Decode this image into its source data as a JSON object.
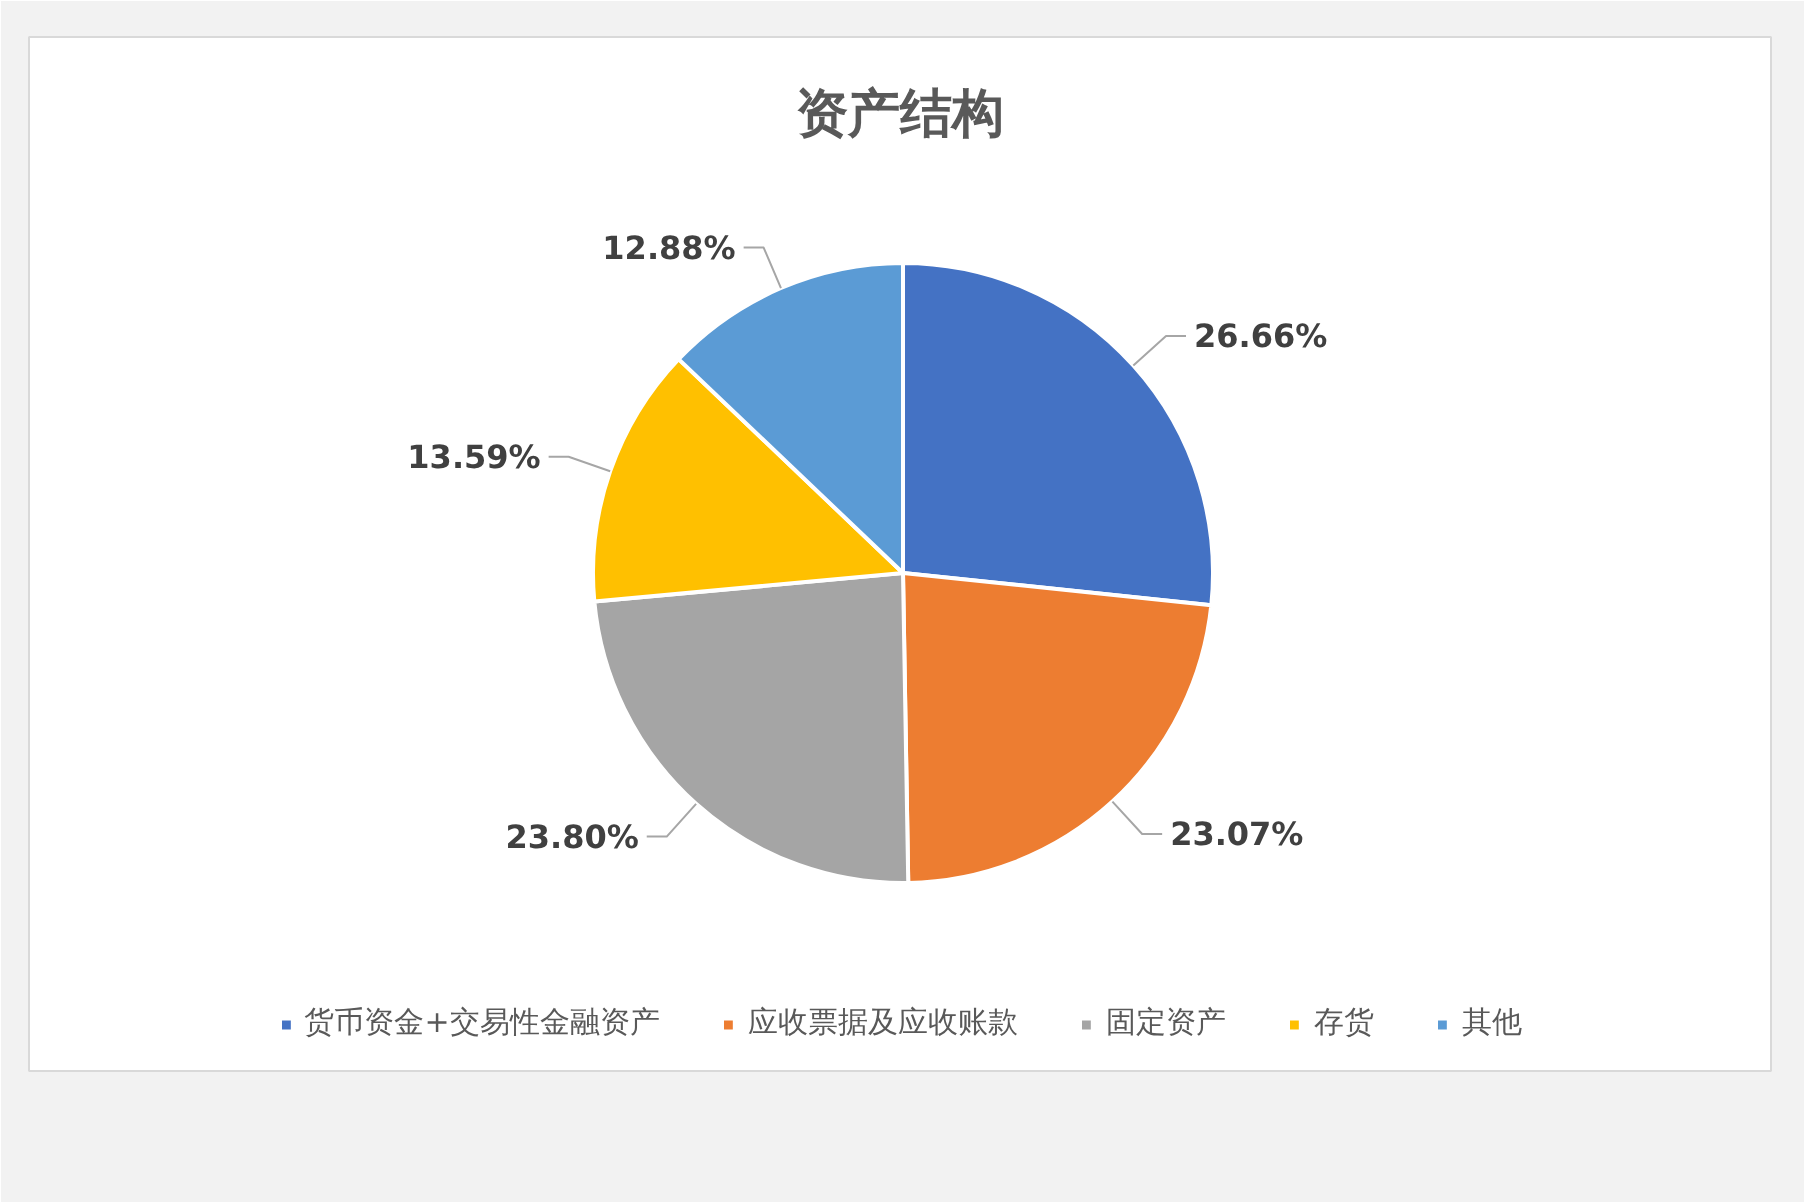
{
  "chart_data": {
    "type": "pie",
    "title": "资产结构",
    "categories": [
      "货币资金+交易性金融资产",
      "应收票据及应收账款",
      "固定资产",
      "存货",
      "其他"
    ],
    "values": [
      26.66,
      23.07,
      23.8,
      13.59,
      12.88
    ],
    "colors": [
      "#4472c4",
      "#ed7d31",
      "#a5a5a5",
      "#ffc000",
      "#5b9bd5"
    ],
    "value_labels": [
      "26.66%",
      "23.07%",
      "23.80%",
      "13.59%",
      "12.88%"
    ],
    "legend": "bottom"
  }
}
